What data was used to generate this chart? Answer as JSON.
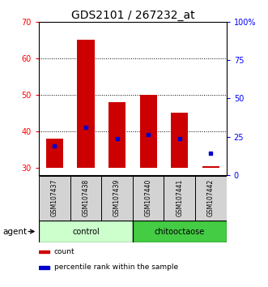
{
  "title": "GDS2101 / 267232_at",
  "samples": [
    "GSM107437",
    "GSM107438",
    "GSM107439",
    "GSM107440",
    "GSM107441",
    "GSM107442"
  ],
  "count_bottom": [
    30,
    30,
    30,
    30,
    30,
    30
  ],
  "count_top": [
    38,
    65,
    48,
    50,
    45,
    30.5
  ],
  "percentile_values": [
    36,
    41,
    38,
    39,
    38,
    34
  ],
  "ylim_left": [
    28,
    70
  ],
  "ylim_right": [
    0,
    100
  ],
  "yticks_left": [
    30,
    40,
    50,
    60,
    70
  ],
  "yticks_right": [
    0,
    25,
    50,
    75,
    100
  ],
  "ytick_labels_right": [
    "0",
    "25",
    "50",
    "75",
    "100%"
  ],
  "bar_color": "#cc0000",
  "percentile_color": "#0000cc",
  "groups": [
    {
      "label": "control",
      "indices": [
        0,
        1,
        2
      ],
      "color": "#ccffcc"
    },
    {
      "label": "chitooctaose",
      "indices": [
        3,
        4,
        5
      ],
      "color": "#44cc44"
    }
  ],
  "group_row_label": "agent",
  "legend_items": [
    {
      "label": "count",
      "color": "#cc0000"
    },
    {
      "label": "percentile rank within the sample",
      "color": "#0000cc"
    }
  ],
  "title_fontsize": 10,
  "tick_fontsize": 7,
  "sample_fontsize": 5.5,
  "group_fontsize": 7,
  "legend_fontsize": 6.5,
  "agent_fontsize": 7.5
}
